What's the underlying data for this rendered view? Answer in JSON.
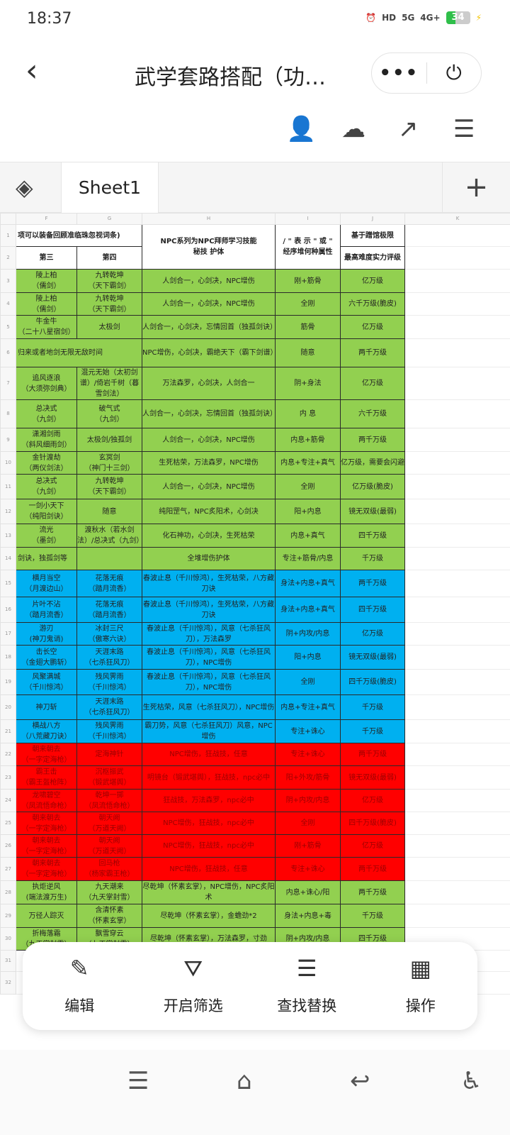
{
  "status": {
    "time": "18:37",
    "battery": "34",
    "network1": "HD",
    "net5g": "5G",
    "net4g": "4G+",
    "battery_level_percent": 34
  },
  "header": {
    "title": "武学套路搭配（功…",
    "more": "•••"
  },
  "sheet": {
    "tab": "Sheet1"
  },
  "colors": {
    "green": "#92d050",
    "blue": "#00b0f0",
    "red": "#ff0000"
  },
  "columns": [
    "F",
    "G",
    "H",
    "I",
    "J",
    "K"
  ],
  "headers": {
    "fg_top": "项可以装备回顾准临珠忽视词条)",
    "f2": "第三",
    "g2": "第四",
    "h": "NPC系列为NPC拜师学习技能\n秘技 护体",
    "i": "/ \" 表 示 \" 或 \"\n经序堆何种属性",
    "j1": "基于蹭馆极限",
    "j2": "最高难度实力评级"
  },
  "rows": [
    {
      "n": "3",
      "c": "green",
      "f": "陵上柏\n（儒剑）",
      "g": "九转乾坤\n（天下霸剑）",
      "h": "人剑合一，心剑决，NPC增伤",
      "i": "刚+筋骨",
      "j": "亿万级"
    },
    {
      "n": "4",
      "c": "green",
      "f": "陵上柏\n（儒剑）",
      "g": "九转乾坤\n（天下霸剑）",
      "h": "人剑合一，心剑决，NPC增伤",
      "i": "全刚",
      "j": "六千万级(脆皮)"
    },
    {
      "n": "5",
      "c": "green",
      "f": "牛金牛\n（二十八星宿剑）",
      "g": "太极剑",
      "h": "人剑合一，心剑决，忘情回首（独孤剑诀）",
      "i": "筋骨",
      "j": "亿万级"
    },
    {
      "n": "6",
      "c": "green",
      "span": true,
      "f": "归来或者地剑无限无敌时间",
      "h": "NPC增伤，心剑决，霸绝天下（霸下剑谱）",
      "i": "随意",
      "j": "两千万级"
    },
    {
      "n": "7",
      "c": "green",
      "f": "追风逐浪\n（大须弥剑典）",
      "g": "混元无始（太初剑谱）/倚岩千树（暮雪剑法）",
      "h": "万法森罗，心剑决，人剑合一",
      "i": "阴+身法",
      "j": "亿万级"
    },
    {
      "n": "8",
      "c": "green",
      "f": "总决式\n（九剑）",
      "g": "破气式\n（九剑）",
      "h": "人剑合一，心剑决，忘情回首（独孤剑诀）",
      "i": "内 息",
      "j": "六千万级"
    },
    {
      "n": "9",
      "c": "green",
      "f": "潇湘剑雨\n（斜风细雨剑）",
      "g": "太极剑/独孤剑",
      "h": "人剑合一，心剑决，NPC增伤",
      "i": "内息+筋骨",
      "j": "两千万级"
    },
    {
      "n": "10",
      "c": "green",
      "f": "金针渡劫\n（两仪剑法）",
      "g": "玄冥剑\n（神门十三剑）",
      "h": "生死枯荣，万法森罗，NPC增伤",
      "i": "内息+专注+真气",
      "j": "亿万级，需要会闪避"
    },
    {
      "n": "11",
      "c": "green",
      "f": "总决式\n（九剑）",
      "g": "九转乾坤\n（天下霸剑）",
      "h": "人剑合一，心剑决，NPC增伤",
      "i": "全刚",
      "j": "亿万级(脆皮)"
    },
    {
      "n": "12",
      "c": "green",
      "f": "一剑小天下\n（纯阳剑诀）",
      "g": "随意",
      "h": "纯阳罡气，NPC炙阳术，心剑决",
      "i": "阳+内息",
      "j": "镜无双级(最弱)"
    },
    {
      "n": "13",
      "c": "green",
      "f": "流光\n（墨剑）",
      "g": "渡秋水（若水剑法）/总决式（九剑）",
      "h": "化石神功，心剑决，生死枯荣",
      "i": "内息+真气",
      "j": "四千万级"
    },
    {
      "n": "14",
      "c": "green",
      "fl": true,
      "f": "剑诀，独孤剑等",
      "g": "",
      "h": "全堆增伤护体",
      "i": "专注+筋骨/内息",
      "j": "千万级"
    },
    {
      "n": "15",
      "c": "blue",
      "f": "横月当空\n（月渡边山）",
      "g": "花落无痕\n（踏月流香）",
      "h": "春波止息（千川惊鸿），生死枯荣，八方藏刀诀",
      "i": "身法+内息+真气",
      "j": "两千万级"
    },
    {
      "n": "16",
      "c": "blue",
      "f": "片叶不沾\n（踏月流香）",
      "g": "花落无痕\n（踏月流香）",
      "h": "春波止息（千川惊鸿），生死枯荣，八方藏刀诀",
      "i": "身法+内息+真气",
      "j": "四千万级"
    },
    {
      "n": "17",
      "c": "blue",
      "f": "游刃\n(神刀鬼诮)",
      "g": "冰封三尺\n（傲寒六诀）",
      "h": "春波止息（千川惊鸿），风意（七杀狂风刀），万法森罗",
      "i": "阴+内攻/内息",
      "j": "亿万级"
    },
    {
      "n": "18",
      "c": "blue",
      "f": "击长空\n（金翅大鹏斩）",
      "g": "天涯末路\n（七杀狂风刀）",
      "h": "春波止息（千川惊鸿），风意（七杀狂风刀），NPC增伤",
      "i": "阳+内息",
      "j": "镜无双级(最弱)"
    },
    {
      "n": "19",
      "c": "blue",
      "f": "风聚满城\n（千川惊鸿）",
      "g": "残风霁雨\n（千川惊鸿）",
      "h": "春波止息（千川惊鸿），风意（七杀狂风刀），NPC增伤",
      "i": "全刚",
      "j": "四千万级(脆皮)"
    },
    {
      "n": "20",
      "c": "blue",
      "f": "神刀斩",
      "g": "天涯末路\n（七杀狂风刀）",
      "h": "生死枯荣，风意（七杀狂风刀），NPC增伤",
      "i": "内息+专注+真气",
      "j": "千万级"
    },
    {
      "n": "21",
      "c": "blue",
      "f": "横战八方\n（八荒藏刀诀）",
      "g": "残风霁雨\n（千川惊鸿）",
      "h": "霸刀势，风意（七杀狂风刀）风意，NPC增伤",
      "i": "专注+诛心",
      "j": "千万级"
    },
    {
      "n": "22",
      "c": "red",
      "f": "朝来朝去\n（一字定海枪）",
      "g": "定海神针",
      "h": "NPC增伤，狂战技，任意",
      "i": "专注+诛心",
      "j": "两千万级"
    },
    {
      "n": "23",
      "c": "red",
      "f": "霸王击\n（霸王盔枪阵）",
      "g": "沉枢振武\n（锻武堪舆）",
      "h": "明镜台（锻武堪舆），狂战技，npc必中",
      "i": "阳+外攻/筋骨",
      "j": "镜无双级(最弱)"
    },
    {
      "n": "24",
      "c": "red",
      "f": "龙啸碧空\n（凤流悟命枪）",
      "g": "乾坤一掷\n（凤流悟命枪）",
      "h": "狂战技，万法森罗，npc必中",
      "i": "阴+内攻/内息",
      "j": "亿万级"
    },
    {
      "n": "25",
      "c": "red",
      "f": "朝来朝去\n（一字定海枪）",
      "g": "朝天阙\n（万道天阙）",
      "h": "NPC增伤，狂战技，npc必中",
      "i": "全刚",
      "j": "四千万级(脆皮)"
    },
    {
      "n": "26",
      "c": "red",
      "f": "朝来朝去\n（一字定海枪）",
      "g": "朝天阙\n（万道天阙）",
      "h": "NPC增伤，狂战技，npc必中",
      "i": "刚+筋骨",
      "j": "亿万级"
    },
    {
      "n": "27",
      "c": "red",
      "f": "朝来朝去\n（一字定海枪）",
      "g": "回马枪\n（杨家霸王枪）",
      "h": "NPC增伤，狂战技，任意",
      "i": "专注+诛心",
      "j": "两千万级"
    },
    {
      "n": "28",
      "c": "green",
      "f": "执炬逆风\n(端法渡万生)",
      "g": "九天潮来\n（九天掌封雪）",
      "h": "尽乾坤（怀素玄掌），NPC增伤，NPC炙阳术",
      "i": "内息+诛心/阳",
      "j": "两千万级"
    },
    {
      "n": "29",
      "c": "green",
      "f": "万径人踪灭",
      "g": "含清怀素\n（怀素玄掌）",
      "h": "尽乾坤（怀素玄掌），金蟾劲*2",
      "i": "身法+内息+毒",
      "j": "千万级"
    },
    {
      "n": "30",
      "c": "green",
      "f": "折梅落霜\n（九天掌封雪）",
      "g": "飘雪穿云\n（九天掌封雪）",
      "h": "尽乾坤（怀素玄掌），万法森罗，寸劲",
      "i": "阴+内攻/内息",
      "j": "四千万级"
    },
    {
      "n": "31",
      "c": "",
      "f": "",
      "g": "",
      "h": "",
      "i": "",
      "j": ""
    },
    {
      "n": "32",
      "c": "",
      "f": "",
      "g": "",
      "h": "",
      "i": "",
      "j": ""
    }
  ],
  "toolbar": [
    {
      "label": "编辑",
      "icon": "pencil-icon"
    },
    {
      "label": "开启筛选",
      "icon": "filter-icon"
    },
    {
      "label": "查找替换",
      "icon": "search-replace-icon"
    },
    {
      "label": "操作",
      "icon": "grid-icon"
    }
  ]
}
